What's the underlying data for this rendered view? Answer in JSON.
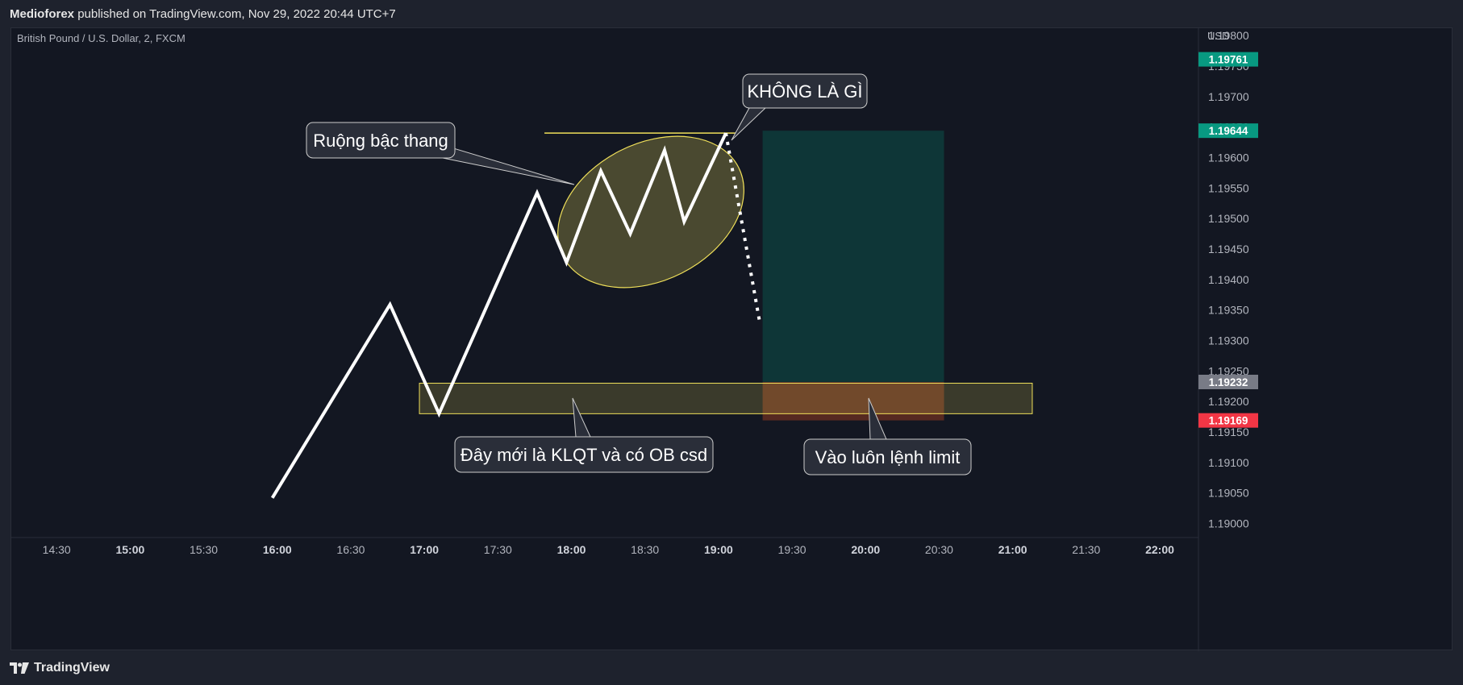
{
  "header": {
    "author": "Medioforex",
    "published_text": "published on TradingView.com, Nov 29, 2022 20:44 UTC+7"
  },
  "chart_data": {
    "type": "line",
    "title": "British Pound / U.S. Dollar, 2, FXCM",
    "y_unit": "USD",
    "x_ticks": [
      "14:30",
      "15:00",
      "15:30",
      "16:00",
      "16:30",
      "17:00",
      "17:30",
      "18:00",
      "18:30",
      "19:00",
      "19:30",
      "20:00",
      "20:30",
      "21:00",
      "21:30",
      "22:00"
    ],
    "x_ticks_bold": [
      "15:00",
      "16:00",
      "17:00",
      "18:00",
      "19:00",
      "20:00",
      "21:00",
      "22:00"
    ],
    "y_ticks": [
      "1.19800",
      "1.19750",
      "1.19700",
      "1.19650",
      "1.19600",
      "1.19550",
      "1.19500",
      "1.19450",
      "1.19400",
      "1.19350",
      "1.19300",
      "1.19250",
      "1.19200",
      "1.19150",
      "1.19100",
      "1.19050",
      "1.19000"
    ],
    "ylim": [
      1.18977,
      1.19812
    ],
    "series": [
      {
        "values": [
          [
            "15:58",
            1.19042
          ],
          [
            "16:46",
            1.19359
          ],
          [
            "17:06",
            1.1918
          ],
          [
            "17:46",
            1.19542
          ],
          [
            "17:58",
            1.19428
          ],
          [
            "18:12",
            1.19578
          ],
          [
            "18:24",
            1.19475
          ],
          [
            "18:38",
            1.19612
          ],
          [
            "18:46",
            1.19495
          ],
          [
            "19:03",
            1.1964
          ]
        ]
      }
    ],
    "projection": [
      [
        "19:03",
        1.1964
      ],
      [
        "19:17",
        1.19326
      ]
    ],
    "price_labels": [
      {
        "value": "1.19761",
        "color": "#089981"
      },
      {
        "value": "1.19644",
        "color": "#089981"
      },
      {
        "value": "1.19232",
        "color": "#787b86"
      },
      {
        "value": "1.19169",
        "color": "#f23645"
      }
    ],
    "position": {
      "start": "19:18",
      "end": "20:32",
      "entry": 1.19232,
      "target": 1.19644,
      "stop": 1.19169
    },
    "zones": [
      {
        "start": "16:58",
        "end": "21:08",
        "top": 1.1923,
        "bottom": 1.1918
      }
    ],
    "resistance_line": {
      "start": "17:49",
      "end": "19:07",
      "value": 1.1964
    },
    "annotations": [
      {
        "text": "Ruộng bậc thang"
      },
      {
        "text": "KHÔNG LÀ GÌ"
      },
      {
        "text": "Đây mới là KLQT và có OB csd"
      },
      {
        "text": "Vào luôn lệnh limit"
      }
    ],
    "colors": {
      "background": "#131722",
      "price_line": "#ffffff",
      "highlight": "#f0e05a",
      "target_zone": "#0e3a3a",
      "stop_zone": "#5a2a22",
      "text": "#b2b5be"
    }
  },
  "footer": {
    "brand": "TradingView"
  }
}
